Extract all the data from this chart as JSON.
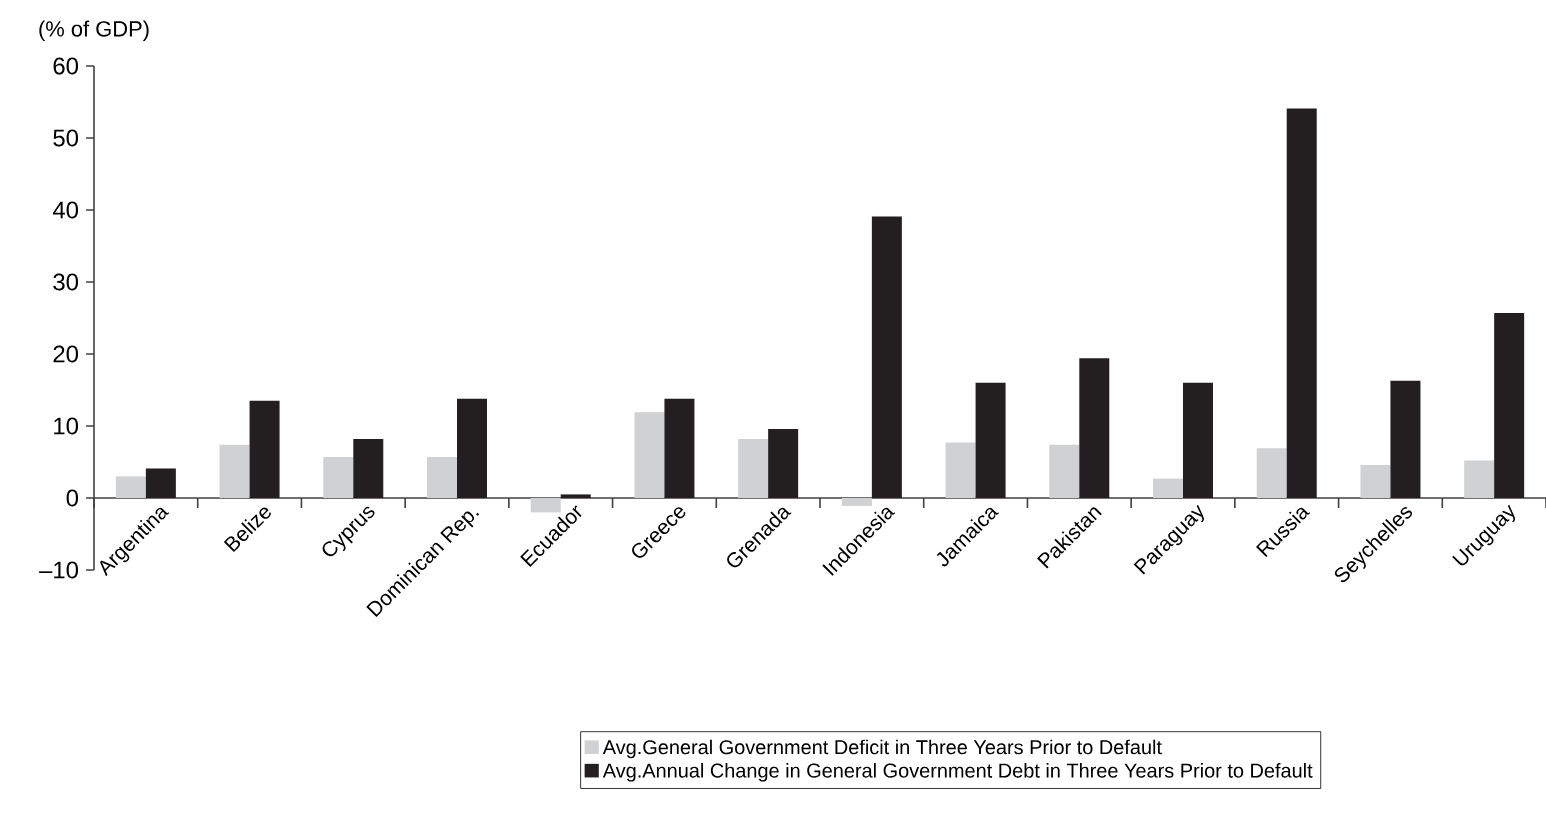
{
  "chart_data": {
    "type": "bar",
    "ylabel": "(% of GDP)",
    "categories": [
      "Argentina",
      "Belize",
      "Cyprus",
      "Dominican Rep.",
      "Ecuador",
      "Greece",
      "Grenada",
      "Indonesia",
      "Jamaica",
      "Pakistan",
      "Paraguay",
      "Russia",
      "Seychelles",
      "Uruguay"
    ],
    "series": [
      {
        "name": "Avg.General Government Deficit in Three Years Prior to Default",
        "color": "#d0d1d3",
        "values": [
          3.0,
          7.4,
          5.7,
          5.7,
          -2.0,
          11.9,
          8.2,
          -1.1,
          7.7,
          7.4,
          2.7,
          6.9,
          4.6,
          5.2
        ]
      },
      {
        "name": "Avg.Annual Change in General Government Debt in Three Years Prior to Default",
        "color": "#231f20",
        "values": [
          4.1,
          13.5,
          8.2,
          13.8,
          0.5,
          13.8,
          9.6,
          39.1,
          16.0,
          19.4,
          16.0,
          54.1,
          16.3,
          25.7
        ]
      }
    ],
    "ylim": [
      -10,
      60
    ],
    "yticks": [
      {
        "value": -10,
        "label": "–10"
      },
      0,
      10,
      20,
      30,
      40,
      50,
      60
    ],
    "legend": "bottom"
  }
}
